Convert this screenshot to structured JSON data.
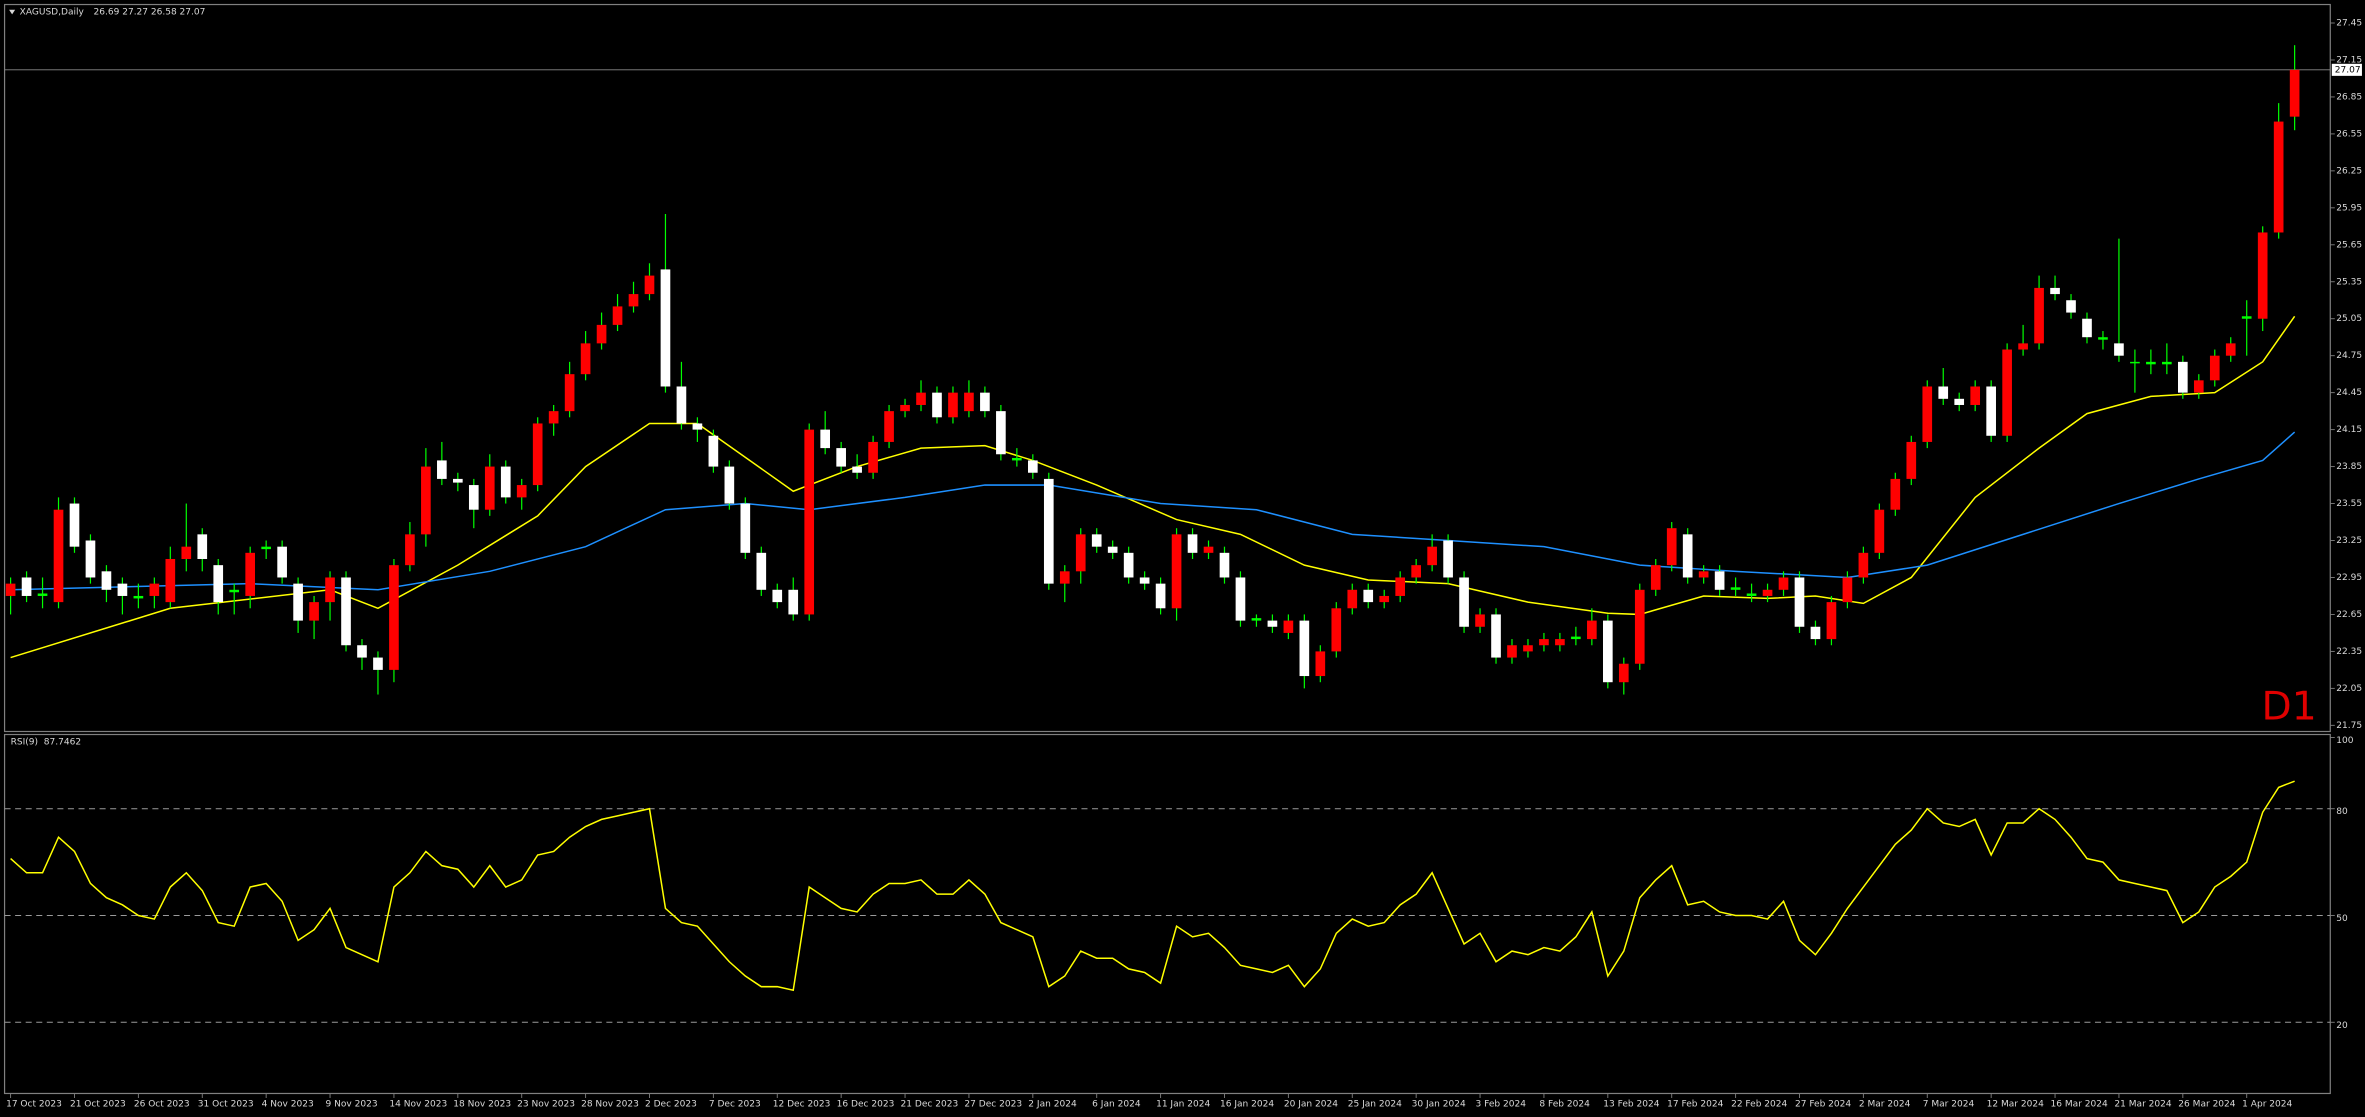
{
  "chart_data": {
    "type": "candlestick",
    "title": "XAGUSD,Daily",
    "categories": [
      "17 Oct 2023",
      null,
      null,
      null,
      "21 Oct 2023",
      null,
      null,
      null,
      "26 Oct 2023",
      null,
      null,
      null,
      "31 Oct 2023",
      null,
      null,
      null,
      "4 Nov 2023",
      null,
      null,
      null,
      "9 Nov 2023",
      null,
      null,
      null,
      "14 Nov 2023",
      null,
      null,
      null,
      "18 Nov 2023",
      null,
      null,
      null,
      "23 Nov 2023",
      null,
      null,
      null,
      "28 Nov 2023",
      null,
      null,
      null,
      "2 Dec 2023",
      null,
      null,
      null,
      "7 Dec 2023",
      null,
      null,
      null,
      "12 Dec 2023",
      null,
      null,
      null,
      "16 Dec 2023",
      null,
      null,
      null,
      "21 Dec 2023",
      null,
      null,
      null,
      "27 Dec 2023",
      null,
      null,
      null,
      "2 Jan 2024",
      null,
      null,
      null,
      "6 Jan 2024",
      null,
      null,
      null,
      "11 Jan 2024",
      null,
      null,
      null,
      "16 Jan 2024",
      null,
      null,
      null,
      "20 Jan 2024",
      null,
      null,
      null,
      "25 Jan 2024",
      null,
      null,
      null,
      "30 Jan 2024",
      null,
      null,
      null,
      "3 Feb 2024",
      null,
      null,
      null,
      "8 Feb 2024",
      null,
      null,
      null,
      "13 Feb 2024",
      null,
      null,
      null,
      "17 Feb 2024",
      null,
      null,
      null,
      "22 Feb 2024",
      null,
      null,
      null,
      "27 Feb 2024",
      null,
      null,
      null,
      "2 Mar 2024",
      null,
      null,
      null,
      "7 Mar 2024",
      null,
      null,
      null,
      "12 Mar 2024",
      null,
      null,
      null,
      "16 Mar 2024",
      null,
      null,
      null,
      "21 Mar 2024",
      null,
      null,
      null,
      "26 Mar 2024",
      null,
      null,
      null,
      "1 Apr 2024",
      null,
      null,
      null
    ],
    "ohlc": [
      [
        22.8,
        22.95,
        22.65,
        22.9
      ],
      [
        22.95,
        23.0,
        22.75,
        22.8
      ],
      [
        22.8,
        22.95,
        22.7,
        22.82
      ],
      [
        22.75,
        23.6,
        22.7,
        23.5
      ],
      [
        23.55,
        23.6,
        23.15,
        23.2
      ],
      [
        23.25,
        23.3,
        22.9,
        22.95
      ],
      [
        23.0,
        23.05,
        22.75,
        22.85
      ],
      [
        22.9,
        22.95,
        22.65,
        22.8
      ],
      [
        22.8,
        22.9,
        22.7,
        22.78
      ],
      [
        22.8,
        22.95,
        22.7,
        22.9
      ],
      [
        22.75,
        23.2,
        22.7,
        23.1
      ],
      [
        23.1,
        23.55,
        23.0,
        23.2
      ],
      [
        23.3,
        23.35,
        23.0,
        23.1
      ],
      [
        23.05,
        23.1,
        22.65,
        22.75
      ],
      [
        22.85,
        22.9,
        22.65,
        22.83
      ],
      [
        22.8,
        23.2,
        22.7,
        23.15
      ],
      [
        23.18,
        23.25,
        23.1,
        23.2
      ],
      [
        23.2,
        23.25,
        22.9,
        22.95
      ],
      [
        22.9,
        22.95,
        22.5,
        22.6
      ],
      [
        22.6,
        22.8,
        22.45,
        22.75
      ],
      [
        22.75,
        23.0,
        22.6,
        22.95
      ],
      [
        22.95,
        23.0,
        22.35,
        22.4
      ],
      [
        22.4,
        22.45,
        22.2,
        22.3
      ],
      [
        22.3,
        22.35,
        22.0,
        22.2
      ],
      [
        22.2,
        23.1,
        22.1,
        23.05
      ],
      [
        23.05,
        23.4,
        23.0,
        23.3
      ],
      [
        23.3,
        24.0,
        23.2,
        23.85
      ],
      [
        23.9,
        24.05,
        23.7,
        23.75
      ],
      [
        23.75,
        23.8,
        23.65,
        23.72
      ],
      [
        23.7,
        23.75,
        23.35,
        23.5
      ],
      [
        23.5,
        23.95,
        23.45,
        23.85
      ],
      [
        23.85,
        23.9,
        23.55,
        23.6
      ],
      [
        23.6,
        23.75,
        23.5,
        23.7
      ],
      [
        23.7,
        24.25,
        23.65,
        24.2
      ],
      [
        24.2,
        24.35,
        24.1,
        24.3
      ],
      [
        24.3,
        24.7,
        24.25,
        24.6
      ],
      [
        24.6,
        24.95,
        24.55,
        24.85
      ],
      [
        24.85,
        25.1,
        24.8,
        25.0
      ],
      [
        25.0,
        25.25,
        24.95,
        25.15
      ],
      [
        25.15,
        25.35,
        25.1,
        25.25
      ],
      [
        25.25,
        25.5,
        25.2,
        25.4
      ],
      [
        25.45,
        25.9,
        24.45,
        24.5
      ],
      [
        24.5,
        24.7,
        24.15,
        24.2
      ],
      [
        24.2,
        24.25,
        24.05,
        24.15
      ],
      [
        24.1,
        24.15,
        23.8,
        23.85
      ],
      [
        23.85,
        23.9,
        23.5,
        23.55
      ],
      [
        23.55,
        23.6,
        23.1,
        23.15
      ],
      [
        23.15,
        23.2,
        22.8,
        22.85
      ],
      [
        22.85,
        22.9,
        22.7,
        22.75
      ],
      [
        22.85,
        22.95,
        22.6,
        22.65
      ],
      [
        22.65,
        24.2,
        22.6,
        24.15
      ],
      [
        24.15,
        24.3,
        23.95,
        24.0
      ],
      [
        24.0,
        24.05,
        23.8,
        23.85
      ],
      [
        23.85,
        23.95,
        23.75,
        23.8
      ],
      [
        23.8,
        24.1,
        23.75,
        24.05
      ],
      [
        24.05,
        24.35,
        24.0,
        24.3
      ],
      [
        24.3,
        24.4,
        24.25,
        24.35
      ],
      [
        24.35,
        24.55,
        24.3,
        24.45
      ],
      [
        24.45,
        24.5,
        24.2,
        24.25
      ],
      [
        24.25,
        24.5,
        24.2,
        24.45
      ],
      [
        24.3,
        24.55,
        24.25,
        24.45
      ],
      [
        24.45,
        24.5,
        24.25,
        24.3
      ],
      [
        24.3,
        24.35,
        23.9,
        23.95
      ],
      [
        23.92,
        24.0,
        23.85,
        23.9
      ],
      [
        23.9,
        23.95,
        23.75,
        23.8
      ],
      [
        23.75,
        23.8,
        22.85,
        22.9
      ],
      [
        22.9,
        23.05,
        22.75,
        23.0
      ],
      [
        23.0,
        23.35,
        22.9,
        23.3
      ],
      [
        23.3,
        23.35,
        23.15,
        23.2
      ],
      [
        23.2,
        23.25,
        23.1,
        23.15
      ],
      [
        23.15,
        23.2,
        22.9,
        22.95
      ],
      [
        22.95,
        23.0,
        22.85,
        22.9
      ],
      [
        22.9,
        22.95,
        22.65,
        22.7
      ],
      [
        22.7,
        23.35,
        22.6,
        23.3
      ],
      [
        23.3,
        23.35,
        23.1,
        23.15
      ],
      [
        23.15,
        23.25,
        23.1,
        23.2
      ],
      [
        23.15,
        23.2,
        22.9,
        22.95
      ],
      [
        22.95,
        23.0,
        22.55,
        22.6
      ],
      [
        22.6,
        22.65,
        22.55,
        22.62
      ],
      [
        22.6,
        22.65,
        22.5,
        22.55
      ],
      [
        22.5,
        22.65,
        22.45,
        22.6
      ],
      [
        22.6,
        22.65,
        22.05,
        22.15
      ],
      [
        22.15,
        22.4,
        22.1,
        22.35
      ],
      [
        22.35,
        22.75,
        22.3,
        22.7
      ],
      [
        22.7,
        22.9,
        22.65,
        22.85
      ],
      [
        22.85,
        22.9,
        22.7,
        22.75
      ],
      [
        22.75,
        22.85,
        22.7,
        22.8
      ],
      [
        22.8,
        23.0,
        22.75,
        22.95
      ],
      [
        22.95,
        23.1,
        22.9,
        23.05
      ],
      [
        23.05,
        23.3,
        23.0,
        23.2
      ],
      [
        23.25,
        23.3,
        22.9,
        22.95
      ],
      [
        22.95,
        23.0,
        22.5,
        22.55
      ],
      [
        22.55,
        22.7,
        22.5,
        22.65
      ],
      [
        22.65,
        22.7,
        22.25,
        22.3
      ],
      [
        22.3,
        22.45,
        22.25,
        22.4
      ],
      [
        22.35,
        22.45,
        22.3,
        22.4
      ],
      [
        22.4,
        22.5,
        22.35,
        22.45
      ],
      [
        22.4,
        22.5,
        22.35,
        22.45
      ],
      [
        22.45,
        22.55,
        22.4,
        22.47
      ],
      [
        22.45,
        22.7,
        22.4,
        22.6
      ],
      [
        22.6,
        22.65,
        22.05,
        22.1
      ],
      [
        22.1,
        22.3,
        22.0,
        22.25
      ],
      [
        22.25,
        22.9,
        22.2,
        22.85
      ],
      [
        22.85,
        23.1,
        22.8,
        23.05
      ],
      [
        23.05,
        23.4,
        23.0,
        23.35
      ],
      [
        23.3,
        23.35,
        22.9,
        22.95
      ],
      [
        22.95,
        23.05,
        22.9,
        23.0
      ],
      [
        23.0,
        23.05,
        22.8,
        22.85
      ],
      [
        22.85,
        22.95,
        22.8,
        22.87
      ],
      [
        22.82,
        22.9,
        22.75,
        22.8
      ],
      [
        22.8,
        22.9,
        22.75,
        22.85
      ],
      [
        22.85,
        23.0,
        22.8,
        22.95
      ],
      [
        22.95,
        23.0,
        22.5,
        22.55
      ],
      [
        22.55,
        22.6,
        22.4,
        22.45
      ],
      [
        22.45,
        22.8,
        22.4,
        22.75
      ],
      [
        22.75,
        23.0,
        22.7,
        22.95
      ],
      [
        22.95,
        23.2,
        22.9,
        23.15
      ],
      [
        23.15,
        23.55,
        23.1,
        23.5
      ],
      [
        23.5,
        23.8,
        23.45,
        23.75
      ],
      [
        23.75,
        24.1,
        23.7,
        24.05
      ],
      [
        24.05,
        24.55,
        24.0,
        24.5
      ],
      [
        24.5,
        24.65,
        24.35,
        24.4
      ],
      [
        24.4,
        24.45,
        24.3,
        24.35
      ],
      [
        24.35,
        24.55,
        24.3,
        24.5
      ],
      [
        24.5,
        24.55,
        24.05,
        24.1
      ],
      [
        24.1,
        24.85,
        24.05,
        24.8
      ],
      [
        24.8,
        25.0,
        24.75,
        24.85
      ],
      [
        24.85,
        25.4,
        24.8,
        25.3
      ],
      [
        25.3,
        25.4,
        25.2,
        25.25
      ],
      [
        25.2,
        25.25,
        25.05,
        25.1
      ],
      [
        25.05,
        25.1,
        24.85,
        24.9
      ],
      [
        24.9,
        24.95,
        24.8,
        24.88
      ],
      [
        24.85,
        25.7,
        24.7,
        24.75
      ],
      [
        24.7,
        24.8,
        24.45,
        24.7
      ],
      [
        24.7,
        24.8,
        24.6,
        24.68
      ],
      [
        24.7,
        24.85,
        24.6,
        24.68
      ],
      [
        24.7,
        24.75,
        24.4,
        24.45
      ],
      [
        24.45,
        24.6,
        24.4,
        24.55
      ],
      [
        24.55,
        24.8,
        24.5,
        24.75
      ],
      [
        24.75,
        24.9,
        24.7,
        24.85
      ],
      [
        25.05,
        25.2,
        24.75,
        25.07
      ],
      [
        25.05,
        25.8,
        24.95,
        25.75
      ],
      [
        25.75,
        26.8,
        25.7,
        26.65
      ],
      [
        26.69,
        27.27,
        26.58,
        27.07
      ]
    ],
    "colors": {
      "bull": "#ff0000",
      "bear": "#ffffff",
      "doji": "#00ff00",
      "wick": "#00ff00"
    },
    "ylim": [
      21.7,
      27.6
    ],
    "yticks": [
      27.45,
      27.15,
      26.85,
      26.55,
      26.25,
      25.95,
      25.65,
      25.35,
      25.05,
      24.75,
      24.45,
      24.15,
      23.85,
      23.55,
      23.25,
      22.95,
      22.65,
      22.35,
      22.05,
      21.75
    ],
    "ma": [
      {
        "color": "#ffff00",
        "x": [
          0,
          10,
          20,
          23,
          28,
          33,
          36,
          40,
          43,
          49,
          53,
          57,
          61,
          64,
          68,
          73,
          77,
          81,
          85,
          90,
          95,
          100,
          102,
          106,
          110,
          113,
          116,
          119,
          123,
          127,
          130,
          134,
          138,
          141,
          143
        ],
        "values": [
          22.3,
          22.7,
          22.85,
          22.7,
          23.05,
          23.45,
          23.85,
          24.2,
          24.2,
          23.65,
          23.85,
          24.0,
          24.02,
          23.9,
          23.7,
          23.42,
          23.3,
          23.05,
          22.93,
          22.9,
          22.75,
          22.66,
          22.65,
          22.8,
          22.78,
          22.8,
          22.74,
          22.95,
          23.6,
          24.0,
          24.28,
          24.42,
          24.45,
          24.7,
          25.07
        ]
      },
      {
        "color": "#1e90ff",
        "x": [
          0,
          15,
          23,
          30,
          36,
          41,
          46,
          50,
          56,
          61,
          65,
          72,
          78,
          84,
          90,
          96,
          102,
          108,
          115,
          120,
          126,
          132,
          137,
          141,
          143
        ],
        "values": [
          22.85,
          22.9,
          22.85,
          23.0,
          23.2,
          23.5,
          23.55,
          23.5,
          23.6,
          23.7,
          23.7,
          23.55,
          23.5,
          23.3,
          23.25,
          23.2,
          23.05,
          23.0,
          22.95,
          23.05,
          23.3,
          23.55,
          23.75,
          23.9,
          24.13
        ]
      }
    ],
    "annotation": "D1",
    "rsi": {
      "type": "line",
      "title": "RSI(9)",
      "color": "#ffff00",
      "ylim": [
        0,
        100
      ],
      "yticks": [
        100,
        80,
        50,
        20
      ],
      "levels": [
        80,
        50,
        20
      ],
      "values": [
        66,
        62,
        62,
        72,
        68,
        59,
        55,
        53,
        50,
        49,
        58,
        62,
        57,
        48,
        47,
        58,
        59,
        54,
        43,
        46,
        52,
        41,
        39,
        37,
        58,
        62,
        68,
        64,
        63,
        58,
        64,
        58,
        60,
        67,
        68,
        72,
        75,
        77,
        78,
        79,
        80,
        52,
        48,
        47,
        42,
        37,
        33,
        30,
        30,
        29,
        58,
        55,
        52,
        51,
        56,
        59,
        59,
        60,
        56,
        56,
        60,
        56,
        48,
        46,
        44,
        30,
        33,
        40,
        38,
        38,
        35,
        34,
        31,
        47,
        44,
        45,
        41,
        36,
        35,
        34,
        36,
        30,
        35,
        45,
        49,
        47,
        48,
        53,
        56,
        62,
        52,
        42,
        45,
        37,
        40,
        39,
        41,
        40,
        44,
        51,
        33,
        40,
        55,
        60,
        64,
        53,
        54,
        51,
        50,
        50,
        49,
        54,
        43,
        39,
        45,
        52,
        58,
        64,
        70,
        74,
        80,
        76,
        75,
        77,
        67,
        76,
        76,
        80,
        77,
        72,
        66,
        65,
        60,
        59,
        58,
        57,
        48,
        51,
        58,
        61,
        65,
        79,
        86,
        87.7462
      ]
    }
  }
}
